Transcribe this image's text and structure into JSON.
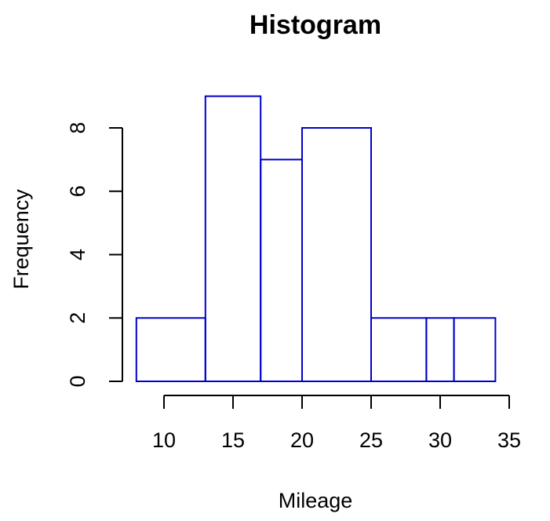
{
  "chart_data": {
    "type": "bar",
    "title": "Histogram",
    "xlabel": "Mileage",
    "ylabel": "Frequency",
    "bins": [
      {
        "x0": 8,
        "x1": 13,
        "count": 2
      },
      {
        "x0": 13,
        "x1": 17,
        "count": 9
      },
      {
        "x0": 17,
        "x1": 20,
        "count": 7
      },
      {
        "x0": 20,
        "x1": 25,
        "count": 8
      },
      {
        "x0": 25,
        "x1": 29,
        "count": 2
      },
      {
        "x0": 29,
        "x1": 31,
        "count": 2
      },
      {
        "x0": 31,
        "x1": 34,
        "count": 2
      }
    ],
    "xlim": [
      10,
      35
    ],
    "ylim": [
      0,
      8
    ],
    "xticks": [
      10,
      15,
      20,
      25,
      30,
      35
    ],
    "yticks": [
      0,
      2,
      4,
      6,
      8
    ],
    "grid": false,
    "bar_color": "#0000cc"
  }
}
